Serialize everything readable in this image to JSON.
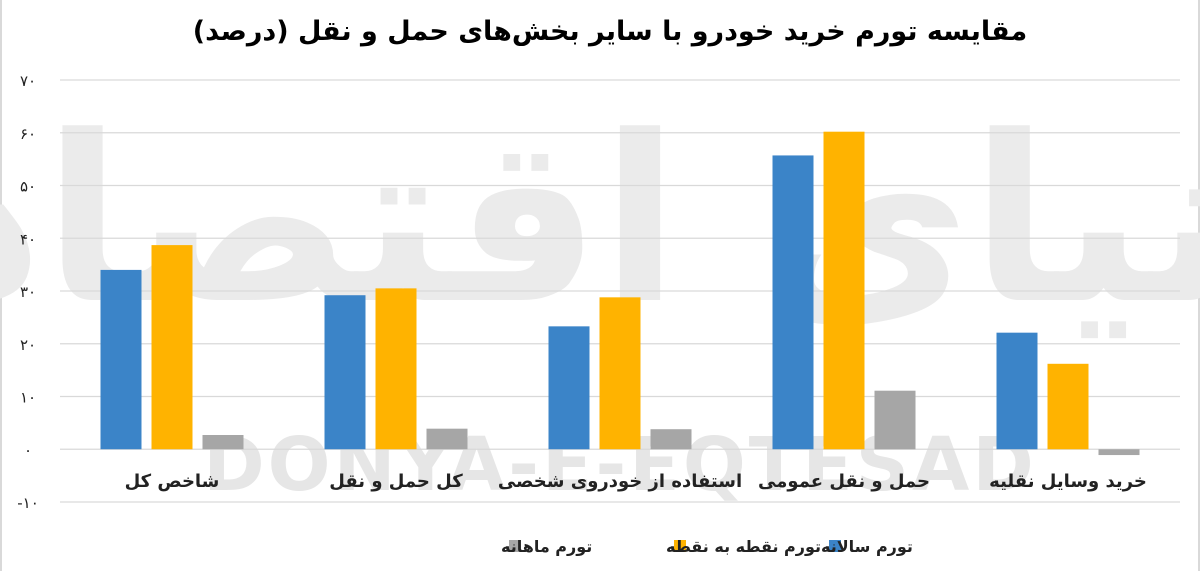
{
  "chart_data": {
    "type": "bar",
    "title": "مقایسه تورم خرید خودرو با سایر بخش‌های حمل و نقل (درصد)",
    "categories": [
      "شاخص کل",
      "کل حمل و نقل",
      "استفاده از خودروی شخصی",
      "حمل و نقل عمومی",
      "خرید وسایل نقلیه"
    ],
    "series": [
      {
        "name": "تورم سالانه",
        "color": "#3b84c8",
        "values": [
          34,
          29.2,
          23.3,
          55.7,
          22.1
        ]
      },
      {
        "name": "تورم نقطه به نقطه",
        "color": "#ffb300",
        "values": [
          38.7,
          30.5,
          28.8,
          60.2,
          16.2
        ]
      },
      {
        "name": "تورم ماهانه",
        "color": "#a6a6a6",
        "values": [
          2.7,
          3.9,
          3.8,
          11.1,
          -1.1
        ]
      }
    ],
    "ylim": [
      -10,
      70
    ],
    "yticks": [
      -10,
      0,
      10,
      20,
      30,
      40,
      50,
      60,
      70
    ],
    "ytick_labels": [
      "-۱۰",
      "۰",
      "۱۰",
      "۲۰",
      "۳۰",
      "۴۰",
      "۵۰",
      "۶۰",
      "۷۰"
    ],
    "grid": true,
    "legend": "bottom-center",
    "watermark_text": "DONYA-E-EQTESAD",
    "watermark_logo_text": "دنیای اقتصاد"
  }
}
